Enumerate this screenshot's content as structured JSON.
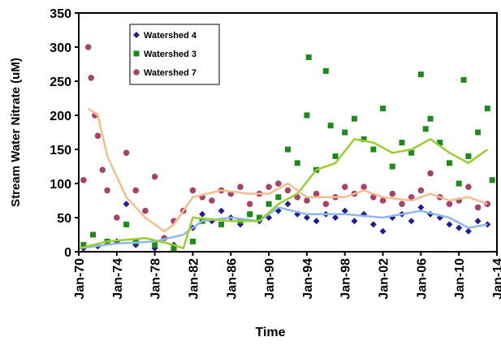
{
  "chart_data": {
    "type": "scatter",
    "x_label": "Time",
    "y_label": "Stream Water Nitrate (uM)",
    "xlim": [
      1970,
      2014
    ],
    "xticks": [
      {
        "value": 1970,
        "label": "Jan-70"
      },
      {
        "value": 1974,
        "label": "Jan-74"
      },
      {
        "value": 1978,
        "label": "Jan-78"
      },
      {
        "value": 1982,
        "label": "Jan-82"
      },
      {
        "value": 1986,
        "label": "Jan-86"
      },
      {
        "value": 1990,
        "label": "Jan-90"
      },
      {
        "value": 1994,
        "label": "Jan-94"
      },
      {
        "value": 1998,
        "label": "Jan-98"
      },
      {
        "value": 2002,
        "label": "Jan-02"
      },
      {
        "value": 2006,
        "label": "Jan-06"
      },
      {
        "value": 2010,
        "label": "Jan-10"
      },
      {
        "value": 2014,
        "label": "Jan-14"
      }
    ],
    "ylim": [
      0,
      350
    ],
    "yticks": [
      0,
      50,
      100,
      150,
      200,
      250,
      300,
      350
    ],
    "legend": "top-left",
    "series": [
      {
        "name": "Watershed 4",
        "color": "#1f1f8f",
        "marker": "diamond",
        "x": [
          1970.5,
          1972,
          1974,
          1975,
          1976,
          1978,
          1980,
          1982,
          1983,
          1984,
          1985,
          1986,
          1987,
          1988,
          1989,
          1990,
          1991,
          1992,
          1993,
          1994,
          1995,
          1996,
          1997,
          1998,
          1999,
          2000,
          2001,
          2002,
          2003,
          2004,
          2005,
          2006,
          2007,
          2008,
          2009,
          2010,
          2011,
          2012,
          2013
        ],
        "values": [
          5,
          8,
          15,
          70,
          10,
          5,
          10,
          35,
          55,
          45,
          60,
          50,
          40,
          55,
          45,
          50,
          60,
          70,
          55,
          50,
          45,
          55,
          50,
          60,
          45,
          55,
          40,
          30,
          50,
          55,
          45,
          65,
          55,
          50,
          40,
          35,
          30,
          45,
          40
        ]
      },
      {
        "name": "Watershed 3",
        "color": "#1e8a1e",
        "marker": "square",
        "x": [
          1970.5,
          1971.5,
          1973,
          1975,
          1976,
          1978,
          1980,
          1982,
          1983,
          1985,
          1987,
          1988,
          1989,
          1990,
          1991,
          1992,
          1993,
          1994,
          1994.2,
          1995,
          1996,
          1996.5,
          1997,
          1998,
          1999,
          2000,
          2001,
          2002,
          2003,
          2004,
          2005,
          2006,
          2006.5,
          2007,
          2008,
          2009,
          2010,
          2010.5,
          2011,
          2012,
          2013,
          2013.5
        ],
        "values": [
          10,
          25,
          15,
          40,
          15,
          10,
          5,
          15,
          45,
          40,
          45,
          55,
          50,
          70,
          80,
          150,
          130,
          200,
          285,
          120,
          265,
          185,
          140,
          175,
          195,
          165,
          150,
          210,
          125,
          160,
          145,
          260,
          180,
          195,
          160,
          130,
          100,
          252,
          140,
          175,
          210,
          105
        ]
      },
      {
        "name": "Watershed 7",
        "color": "#a5426e",
        "marker": "circle",
        "x": [
          1970.5,
          1971,
          1971.3,
          1971.7,
          1972,
          1972.5,
          1973,
          1974,
          1975,
          1976,
          1977,
          1978,
          1979,
          1980,
          1981,
          1982,
          1983,
          1984,
          1985,
          1986,
          1987,
          1988,
          1989,
          1990,
          1991,
          1992,
          1993,
          1994,
          1995,
          1996,
          1997,
          1998,
          1999,
          2000,
          2001,
          2002,
          2003,
          2004,
          2005,
          2006,
          2007,
          2008,
          2009,
          2010,
          2011,
          2012,
          2013
        ],
        "values": [
          105,
          300,
          255,
          200,
          170,
          120,
          90,
          50,
          145,
          90,
          60,
          110,
          20,
          45,
          60,
          90,
          80,
          75,
          90,
          85,
          95,
          70,
          85,
          95,
          100,
          90,
          80,
          75,
          85,
          70,
          80,
          95,
          85,
          95,
          80,
          75,
          85,
          70,
          80,
          90,
          115,
          80,
          70,
          75,
          95,
          65,
          70
        ]
      }
    ],
    "trend_lines": [
      {
        "color": "#8fb8ea",
        "x": [
          1970,
          1974,
          1978,
          1981,
          1983,
          1986,
          1989,
          1991,
          1994,
          1998,
          2002,
          2006,
          2009,
          2011,
          2013
        ],
        "values": [
          5,
          12,
          15,
          25,
          45,
          50,
          45,
          65,
          55,
          55,
          50,
          60,
          50,
          35,
          40
        ]
      },
      {
        "color": "#9acd32",
        "x": [
          1970,
          1973,
          1977,
          1980,
          1981,
          1982,
          1986,
          1989,
          1991,
          1993,
          1995,
          1997,
          1999,
          2001,
          2003,
          2005,
          2007,
          2009,
          2011,
          2013
        ],
        "values": [
          5,
          15,
          20,
          10,
          5,
          50,
          45,
          45,
          70,
          85,
          120,
          130,
          165,
          160,
          145,
          150,
          165,
          145,
          130,
          150
        ]
      },
      {
        "color": "#f5bc8e",
        "x": [
          1971,
          1972,
          1973,
          1975,
          1977,
          1979,
          1980,
          1982,
          1985,
          1988,
          1990,
          1992,
          1994,
          1996,
          1998,
          2000,
          2002,
          2005,
          2007,
          2009,
          2011,
          2013
        ],
        "values": [
          210,
          200,
          140,
          80,
          50,
          30,
          40,
          80,
          90,
          85,
          85,
          100,
          80,
          80,
          80,
          90,
          80,
          75,
          85,
          75,
          80,
          70
        ]
      }
    ]
  }
}
